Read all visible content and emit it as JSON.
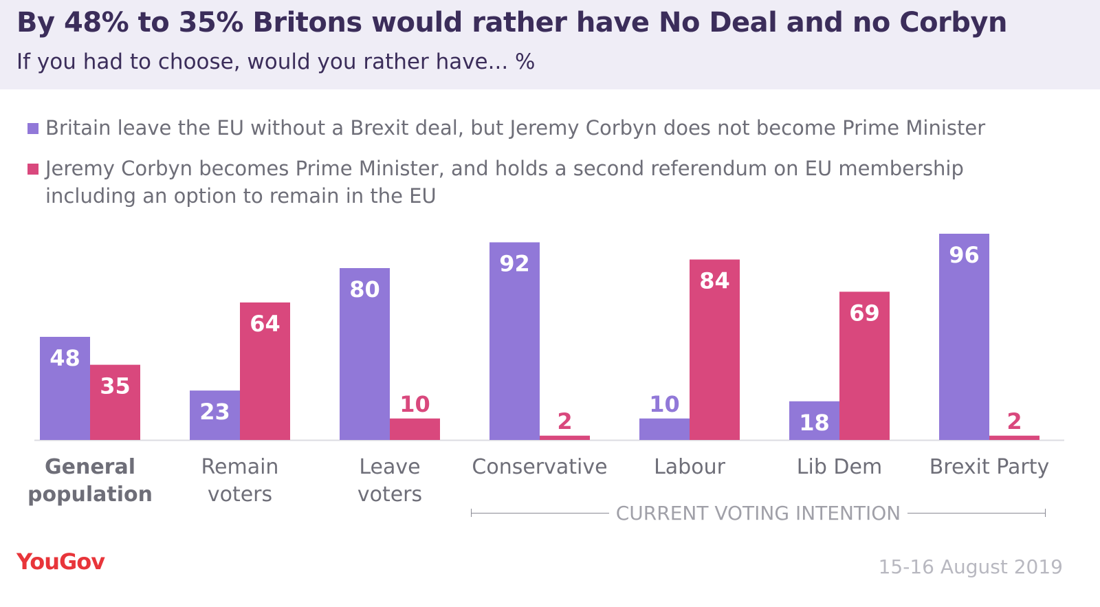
{
  "header": {
    "title": "By 48% to 35% Britons would rather have No Deal and no Corbyn",
    "subtitle": "If you had to choose, would you rather have... %"
  },
  "chart_data": {
    "type": "bar",
    "title": "By 48% to 35% Britons would rather have No Deal and no Corbyn",
    "subtitle": "If you had to choose, would you rather have... %",
    "categories": [
      "General population",
      "Remain voters",
      "Leave voters",
      "Conservative",
      "Labour",
      "Lib Dem",
      "Brexit Party"
    ],
    "series": [
      {
        "name": "Britain leave the EU without a Brexit deal, but Jeremy Corbyn does not become Prime Minister",
        "color": "#9178d8",
        "values": [
          48,
          23,
          80,
          92,
          10,
          18,
          96
        ]
      },
      {
        "name": "Jeremy Corbyn becomes Prime Minister, and holds a second referendum on EU membership including an option to remain in the EU",
        "color": "#d9487d",
        "values": [
          35,
          64,
          10,
          2,
          84,
          69,
          2
        ]
      }
    ],
    "ylim": [
      0,
      100
    ],
    "grid": false,
    "legend": "top-left",
    "annotation": "CURRENT VOTING INTENTION"
  },
  "categories_display": [
    [
      "General",
      "population"
    ],
    [
      "Remain",
      "voters"
    ],
    [
      "Leave",
      "voters"
    ],
    [
      "Conservative"
    ],
    [
      "Labour"
    ],
    [
      "Lib Dem"
    ],
    [
      "Brexit Party"
    ]
  ],
  "footer": {
    "logo": "YouGov",
    "date": "15-16 August 2019"
  }
}
